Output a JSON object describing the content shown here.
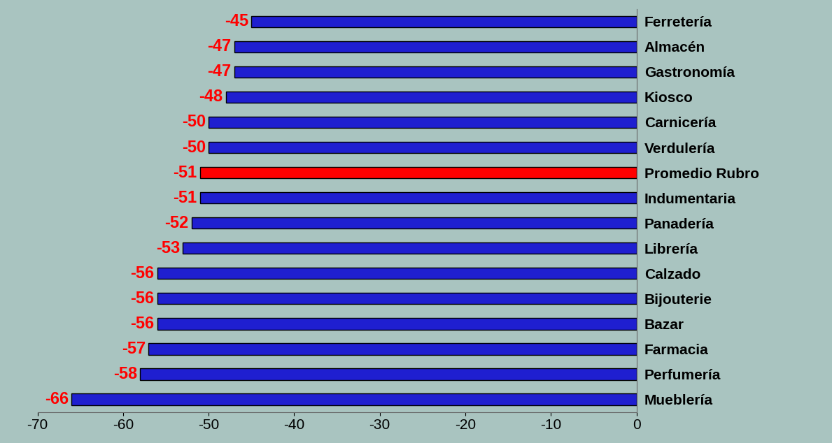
{
  "chart_data": {
    "type": "bar",
    "orientation": "horizontal",
    "categories": [
      "Ferretería",
      "Almacén",
      "Gastronomía",
      "Kiosco",
      "Carnicería",
      "Verdulería",
      "Promedio Rubro",
      "Indumentaria",
      "Panadería",
      "Librería",
      "Calzado",
      "Bijouterie",
      "Bazar",
      "Farmacia",
      "Perfumería",
      "Mueblería"
    ],
    "values": [
      -45,
      -47,
      -47,
      -48,
      -50,
      -50,
      -51,
      -51,
      -52,
      -53,
      -56,
      -56,
      -56,
      -57,
      -58,
      -66
    ],
    "colors": [
      "#1f1fd0",
      "#1f1fd0",
      "#1f1fd0",
      "#1f1fd0",
      "#1f1fd0",
      "#1f1fd0",
      "#ff0000",
      "#1f1fd0",
      "#1f1fd0",
      "#1f1fd0",
      "#1f1fd0",
      "#1f1fd0",
      "#1f1fd0",
      "#1f1fd0",
      "#1f1fd0",
      "#1f1fd0"
    ],
    "xlim": [
      -70,
      0
    ],
    "xticks": [
      -70,
      -60,
      -50,
      -40,
      -30,
      -20,
      -10,
      0
    ],
    "data_labels": true,
    "grid": false
  }
}
